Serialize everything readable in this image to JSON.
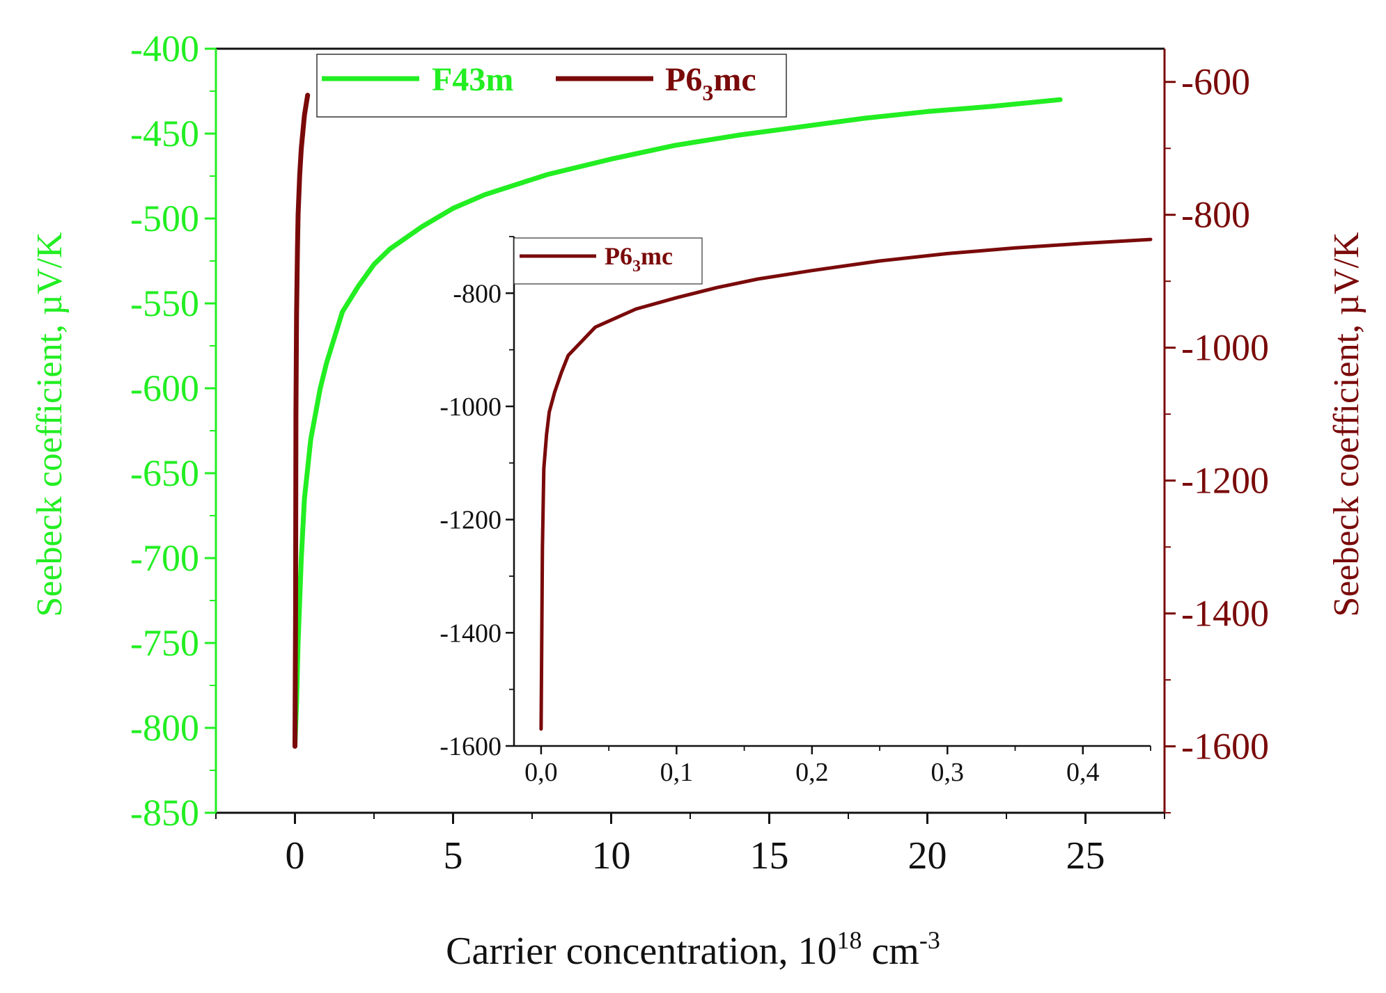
{
  "chart_data": [
    {
      "type": "line",
      "xlabel": "Carrier concentration, 10",
      "xlabel_sup": "18",
      "xlabel_unit": " cm",
      "xlabel_unit_sup": "-3",
      "ylabel_left": "Seebeck coefficient, µV/K",
      "ylabel_right": "Seebeck coefficient, µV/K",
      "xlim": [
        -2.5,
        27.5
      ],
      "ylim_left": [
        -850,
        -400
      ],
      "ylim_right": [
        -1700,
        -550
      ],
      "x_ticks": [
        "0",
        "5",
        "10",
        "15",
        "20",
        "25"
      ],
      "y_ticks_left": [
        "-400",
        "-450",
        "-500",
        "-550",
        "-600",
        "-650",
        "-700",
        "-750",
        "-800",
        "-850"
      ],
      "y_ticks_right": [
        "-600",
        "-800",
        "-1000",
        "-1200",
        "-1400",
        "-1600"
      ],
      "legend_position": "top-left",
      "colors": {
        "F43m": "#22ee22",
        "P63mc": "#7a0a0a"
      },
      "series": [
        {
          "name": "F43m",
          "axis": "left",
          "x": [
            0.0,
            0.05,
            0.1,
            0.2,
            0.3,
            0.5,
            0.8,
            1.0,
            1.5,
            2.0,
            2.5,
            3.0,
            4.0,
            5.0,
            6.0,
            8.0,
            10.0,
            12.0,
            14.0,
            16.0,
            18.0,
            20.0,
            22.0,
            24.2
          ],
          "y": [
            -810,
            -785,
            -750,
            -700,
            -665,
            -630,
            -600,
            -585,
            -555,
            -540,
            -527,
            -518,
            -505,
            -494,
            -486,
            -474,
            -465,
            -457,
            -451,
            -446,
            -441,
            -437,
            -434,
            -430
          ]
        },
        {
          "name_prefix": "P6",
          "name_sub": "3",
          "name_suffix": "mc",
          "axis": "right",
          "x": [
            0.0,
            0.02,
            0.03,
            0.05,
            0.08,
            0.1,
            0.15,
            0.2,
            0.3,
            0.4
          ],
          "y": [
            -1600,
            -1400,
            -1100,
            -950,
            -850,
            -800,
            -740,
            -700,
            -650,
            -620
          ]
        }
      ]
    },
    {
      "type": "line",
      "role": "inset",
      "xlim": [
        -0.02,
        0.45
      ],
      "ylim": [
        -1600,
        -700
      ],
      "x_ticks": [
        "0,0",
        "0,1",
        "0,2",
        "0,3",
        "0,4"
      ],
      "y_ticks": [
        "-800",
        "-1000",
        "-1200",
        "-1400",
        "-1600"
      ],
      "series": [
        {
          "name_prefix": "P6",
          "name_sub": "3",
          "name_suffix": "mc",
          "x": [
            0.0,
            0.001,
            0.002,
            0.004,
            0.006,
            0.01,
            0.015,
            0.02,
            0.04,
            0.07,
            0.1,
            0.13,
            0.16,
            0.2,
            0.25,
            0.3,
            0.35,
            0.4,
            0.45
          ],
          "y": [
            -1570,
            -1250,
            -1110,
            -1050,
            -1010,
            -975,
            -940,
            -910,
            -860,
            -828,
            -808,
            -790,
            -775,
            -760,
            -743,
            -730,
            -720,
            -712,
            -705
          ]
        }
      ]
    }
  ]
}
